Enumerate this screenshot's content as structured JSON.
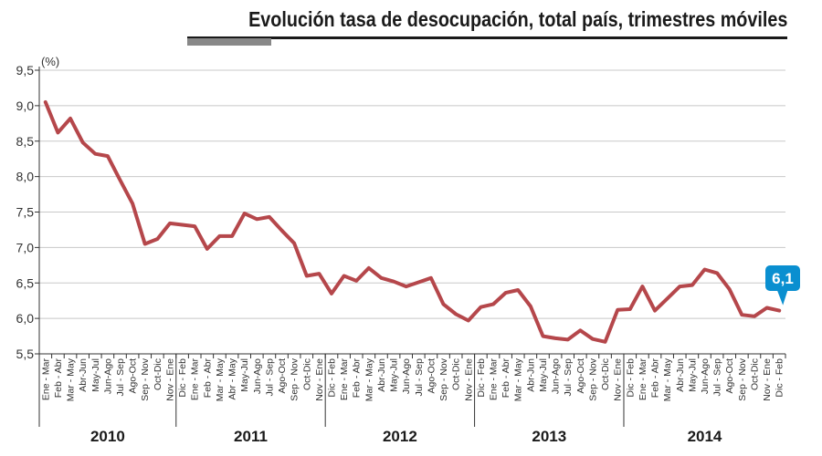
{
  "title": "Evolución tasa de desocupación, total país, trimestres móviles",
  "colors": {
    "line": "#b5474b",
    "grid": "#c8c8c8",
    "callout": "#0a8fd0",
    "title_bar": "#888888"
  },
  "chart_data": {
    "type": "line",
    "title": "Evolución tasa de desocupación, total país, trimestres móviles",
    "ylabel": "(%)",
    "xlabel": "",
    "ylim": [
      5.5,
      9.5
    ],
    "ytick_labels": [
      "5,5",
      "6,0",
      "6,5",
      "7,0",
      "7,5",
      "8,0",
      "8,5",
      "9,0",
      "9,5"
    ],
    "grid": true,
    "categories": [
      "Ene - Mar",
      "Feb - Abr",
      "Mar - May",
      "Abr-Jun",
      "May-Jul",
      "Jun-Ago",
      "Jul - Sep",
      "Ago-Oct",
      "Sep - Nov",
      "Oct-Dic",
      "Nov - Ene",
      "Dic - Feb",
      "Ene - Mar",
      "Feb - Abr",
      "Mar - May",
      "Abr - May",
      "May-Jul",
      "Jun-Ago",
      "Jul - Sep",
      "Ago-Oct",
      "Sep - Nov",
      "Oct-Dic",
      "Nov - Ene",
      "Dic - Feb",
      "Ene - Mar",
      "Feb - Abr",
      "Mar - May",
      "Abr-Jun",
      "May-Jul",
      "Jun-Ago",
      "Jul - Sep",
      "Ago-Oct",
      "Sep - Nov",
      "Oct-Dic",
      "Nov - Ene",
      "Dic - Feb",
      "Ene - Mar",
      "Feb - Abr",
      "Mar - May",
      "Abr-Jun",
      "May-Jul",
      "Jun-Ago",
      "Jul - Sep",
      "Ago-Oct",
      "Sep - Nov",
      "Oct-Dic",
      "Nov - Ene",
      "Dic - Feb",
      "Ene - Mar",
      "Feb - Abr",
      "Mar - May",
      "Abr-Jun",
      "May-Jul",
      "Jun-Ago",
      "Jul - Sep",
      "Ago-Oct",
      "Sep - Nov",
      "Oct-Dic",
      "Nov - Ene",
      "Dic - Feb"
    ],
    "series": [
      {
        "values": [
          9.05,
          8.62,
          8.82,
          8.48,
          8.32,
          8.29,
          7.95,
          7.62,
          7.05,
          7.12,
          7.34,
          7.32,
          7.3,
          6.98,
          7.16,
          7.16,
          7.48,
          7.4,
          7.43,
          7.24,
          7.06,
          6.6,
          6.63,
          6.35,
          6.6,
          6.53,
          6.71,
          6.57,
          6.52,
          6.45,
          6.51,
          6.57,
          6.2,
          6.06,
          5.97,
          6.16,
          6.2,
          6.36,
          6.4,
          6.17,
          5.75,
          5.72,
          5.7,
          5.83,
          5.71,
          5.67,
          6.12,
          6.13,
          6.45,
          6.11,
          6.28,
          6.45,
          6.47,
          6.69,
          6.64,
          6.41,
          6.05,
          6.03,
          6.15,
          6.11
        ]
      }
    ],
    "groups": [
      {
        "label": "2010",
        "count": 11
      },
      {
        "label": "2011",
        "count": 12
      },
      {
        "label": "2012",
        "count": 12
      },
      {
        "label": "2013",
        "count": 12
      },
      {
        "label": "2014",
        "count": 13
      }
    ],
    "annotations": [
      {
        "text": "6,1",
        "index": 59
      }
    ]
  }
}
